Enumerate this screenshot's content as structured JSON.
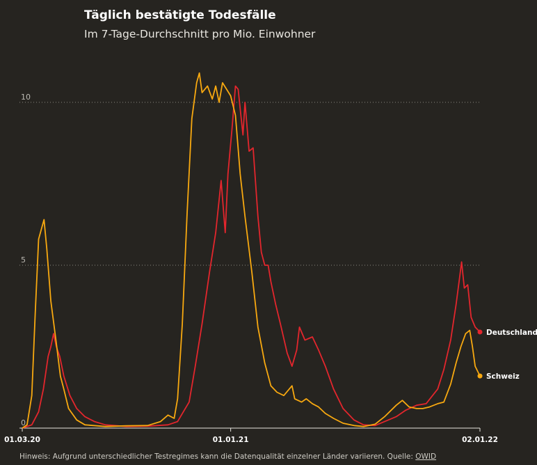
{
  "header": {
    "title": "Täglich bestätigte Todesfälle",
    "subtitle": "Im 7-Tage-Durchschnitt pro Mio. Einwohner"
  },
  "footer": {
    "note": "Hinweis: Aufgrund unterschiedlicher Testregimes kann die Datenqualität einzelner Länder variieren. Quelle:",
    "source": "OWID"
  },
  "colors": {
    "background": "#262420",
    "deutschland": "#e3262d",
    "schweiz": "#f8a910",
    "grid": "#8a8880"
  },
  "chart_data": {
    "type": "line",
    "title": "Täglich bestätigte Todesfälle",
    "subtitle": "Im 7-Tage-Durchschnitt pro Mio. Einwohner",
    "xlim": [
      "2020-03-01",
      "2022-01-02"
    ],
    "ylim": [
      0,
      11
    ],
    "x_ticks": [
      {
        "date": "2020-03-01",
        "label": "01.03.20"
      },
      {
        "date": "2021-01-01",
        "label": "01.01.21"
      },
      {
        "date": "2022-01-02",
        "label": "02.01.22"
      }
    ],
    "y_ticks": [
      0,
      5,
      10
    ],
    "grid": "horizontal dotted",
    "series": [
      {
        "name": "Deutschland",
        "color": "#e3262d",
        "end_label": "Deutschland",
        "points": [
          [
            "2020-03-01",
            0
          ],
          [
            "2020-03-15",
            0.1
          ],
          [
            "2020-03-25",
            0.5
          ],
          [
            "2020-04-01",
            1.2
          ],
          [
            "2020-04-08",
            2.2
          ],
          [
            "2020-04-12",
            2.5
          ],
          [
            "2020-04-16",
            2.9
          ],
          [
            "2020-04-20",
            2.5
          ],
          [
            "2020-04-25",
            2.2
          ],
          [
            "2020-05-01",
            1.6
          ],
          [
            "2020-05-10",
            1.0
          ],
          [
            "2020-05-20",
            0.6
          ],
          [
            "2020-06-01",
            0.35
          ],
          [
            "2020-06-15",
            0.2
          ],
          [
            "2020-07-01",
            0.1
          ],
          [
            "2020-08-01",
            0.05
          ],
          [
            "2020-09-01",
            0.06
          ],
          [
            "2020-10-01",
            0.1
          ],
          [
            "2020-10-15",
            0.2
          ],
          [
            "2020-11-01",
            0.8
          ],
          [
            "2020-11-10",
            1.9
          ],
          [
            "2020-11-20",
            3.2
          ],
          [
            "2020-12-01",
            4.8
          ],
          [
            "2020-12-10",
            6.0
          ],
          [
            "2020-12-18",
            7.6
          ],
          [
            "2020-12-24",
            6.0
          ],
          [
            "2020-12-28",
            7.8
          ],
          [
            "2021-01-03",
            9.2
          ],
          [
            "2021-01-08",
            10.5
          ],
          [
            "2021-01-12",
            10.4
          ],
          [
            "2021-01-15",
            9.8
          ],
          [
            "2021-01-19",
            9.0
          ],
          [
            "2021-01-22",
            10.0
          ],
          [
            "2021-01-28",
            8.5
          ],
          [
            "2021-02-03",
            8.6
          ],
          [
            "2021-02-10",
            6.5
          ],
          [
            "2021-02-15",
            5.4
          ],
          [
            "2021-02-20",
            5.0
          ],
          [
            "2021-02-25",
            5.0
          ],
          [
            "2021-03-01",
            4.5
          ],
          [
            "2021-03-08",
            3.8
          ],
          [
            "2021-03-15",
            3.2
          ],
          [
            "2021-03-25",
            2.3
          ],
          [
            "2021-04-01",
            1.9
          ],
          [
            "2021-04-08",
            2.4
          ],
          [
            "2021-04-12",
            3.1
          ],
          [
            "2021-04-20",
            2.7
          ],
          [
            "2021-05-01",
            2.8
          ],
          [
            "2021-05-10",
            2.4
          ],
          [
            "2021-05-20",
            1.9
          ],
          [
            "2021-06-01",
            1.2
          ],
          [
            "2021-06-15",
            0.6
          ],
          [
            "2021-07-01",
            0.25
          ],
          [
            "2021-07-15",
            0.1
          ],
          [
            "2021-08-01",
            0.08
          ],
          [
            "2021-08-15",
            0.2
          ],
          [
            "2021-09-01",
            0.35
          ],
          [
            "2021-09-15",
            0.55
          ],
          [
            "2021-10-01",
            0.7
          ],
          [
            "2021-10-15",
            0.75
          ],
          [
            "2021-11-01",
            1.2
          ],
          [
            "2021-11-10",
            1.8
          ],
          [
            "2021-11-20",
            2.7
          ],
          [
            "2021-11-28",
            3.8
          ],
          [
            "2021-12-03",
            4.6
          ],
          [
            "2021-12-06",
            5.1
          ],
          [
            "2021-12-10",
            4.3
          ],
          [
            "2021-12-15",
            4.4
          ],
          [
            "2021-12-20",
            3.4
          ],
          [
            "2021-12-26",
            3.1
          ],
          [
            "2022-01-02",
            2.95
          ]
        ]
      },
      {
        "name": "Schweiz",
        "color": "#f8a910",
        "end_label": "Schweiz",
        "points": [
          [
            "2020-03-01",
            0
          ],
          [
            "2020-03-08",
            0.1
          ],
          [
            "2020-03-15",
            1.0
          ],
          [
            "2020-03-20",
            3.5
          ],
          [
            "2020-03-25",
            5.8
          ],
          [
            "2020-03-29",
            6.1
          ],
          [
            "2020-04-02",
            6.4
          ],
          [
            "2020-04-06",
            5.5
          ],
          [
            "2020-04-12",
            3.9
          ],
          [
            "2020-04-20",
            2.6
          ],
          [
            "2020-04-26",
            1.6
          ],
          [
            "2020-05-01",
            1.2
          ],
          [
            "2020-05-08",
            0.6
          ],
          [
            "2020-05-20",
            0.25
          ],
          [
            "2020-06-01",
            0.1
          ],
          [
            "2020-07-01",
            0.05
          ],
          [
            "2020-08-01",
            0.07
          ],
          [
            "2020-09-01",
            0.08
          ],
          [
            "2020-09-20",
            0.2
          ],
          [
            "2020-10-01",
            0.4
          ],
          [
            "2020-10-10",
            0.3
          ],
          [
            "2020-10-15",
            0.9
          ],
          [
            "2020-10-22",
            3.2
          ],
          [
            "2020-10-29",
            6.6
          ],
          [
            "2020-11-05",
            9.5
          ],
          [
            "2020-11-12",
            10.6
          ],
          [
            "2020-11-16",
            10.9
          ],
          [
            "2020-11-20",
            10.3
          ],
          [
            "2020-11-28",
            10.5
          ],
          [
            "2020-12-05",
            10.1
          ],
          [
            "2020-12-10",
            10.5
          ],
          [
            "2020-12-15",
            10.0
          ],
          [
            "2020-12-20",
            10.6
          ],
          [
            "2021-01-01",
            10.2
          ],
          [
            "2021-01-08",
            9.6
          ],
          [
            "2021-01-15",
            7.8
          ],
          [
            "2021-01-22",
            6.5
          ],
          [
            "2021-02-01",
            4.8
          ],
          [
            "2021-02-10",
            3.1
          ],
          [
            "2021-02-20",
            2.0
          ],
          [
            "2021-03-01",
            1.3
          ],
          [
            "2021-03-10",
            1.1
          ],
          [
            "2021-03-20",
            1.0
          ],
          [
            "2021-04-01",
            1.3
          ],
          [
            "2021-04-05",
            0.9
          ],
          [
            "2021-04-15",
            0.8
          ],
          [
            "2021-04-22",
            0.9
          ],
          [
            "2021-05-01",
            0.75
          ],
          [
            "2021-05-10",
            0.65
          ],
          [
            "2021-05-20",
            0.45
          ],
          [
            "2021-06-01",
            0.3
          ],
          [
            "2021-06-15",
            0.15
          ],
          [
            "2021-07-01",
            0.08
          ],
          [
            "2021-07-15",
            0.05
          ],
          [
            "2021-08-01",
            0.12
          ],
          [
            "2021-08-15",
            0.35
          ],
          [
            "2021-09-01",
            0.7
          ],
          [
            "2021-09-10",
            0.85
          ],
          [
            "2021-09-20",
            0.65
          ],
          [
            "2021-10-01",
            0.6
          ],
          [
            "2021-10-10",
            0.6
          ],
          [
            "2021-10-20",
            0.65
          ],
          [
            "2021-11-01",
            0.75
          ],
          [
            "2021-11-10",
            0.8
          ],
          [
            "2021-11-20",
            1.35
          ],
          [
            "2021-11-28",
            2.0
          ],
          [
            "2021-12-05",
            2.5
          ],
          [
            "2021-12-12",
            2.9
          ],
          [
            "2021-12-18",
            3.0
          ],
          [
            "2021-12-22",
            2.5
          ],
          [
            "2021-12-26",
            1.9
          ],
          [
            "2022-01-02",
            1.6
          ]
        ]
      }
    ]
  }
}
